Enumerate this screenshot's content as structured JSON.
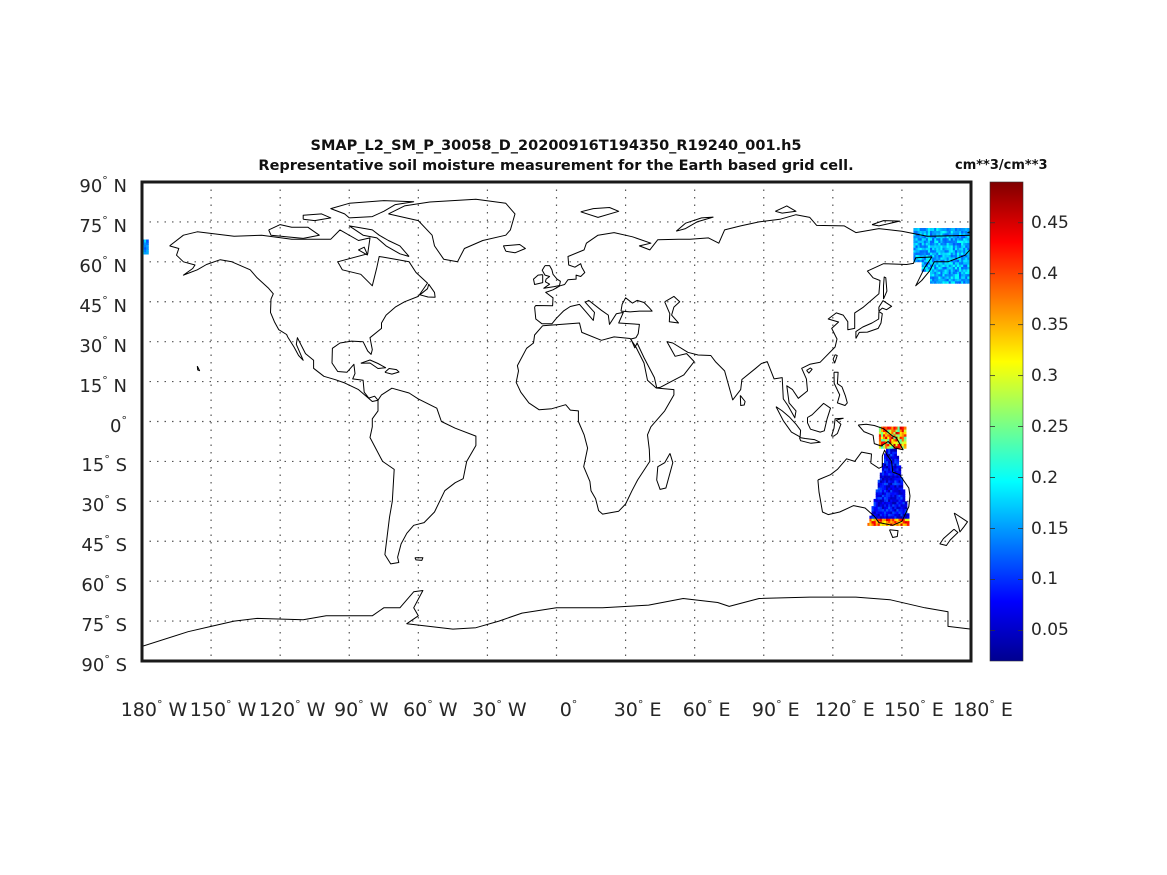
{
  "title": {
    "line1": "SMAP_L2_SM_P_30058_D_20200916T194350_R19240_001.h5",
    "line2": "Representative soil moisture measurement for the Earth based grid cell."
  },
  "colorbar": {
    "unit": "cm**3/cm**3",
    "range": [
      0.02,
      0.49
    ],
    "colormap": "jet",
    "ticks": [
      "0.45",
      "0.4",
      "0.35",
      "0.3",
      "0.25",
      "0.2",
      "0.15",
      "0.1",
      "0.05"
    ],
    "tick_values": [
      0.45,
      0.4,
      0.35,
      0.3,
      0.25,
      0.2,
      0.15,
      0.1,
      0.05
    ]
  },
  "map": {
    "projection": "equirectangular",
    "lon_range": [
      -180,
      180
    ],
    "lat_range": [
      -90,
      90
    ],
    "grid": "dotted",
    "lat_labels": [
      {
        "deg": "90",
        "hem": "N",
        "lat": 90
      },
      {
        "deg": "75",
        "hem": "N",
        "lat": 75
      },
      {
        "deg": "60",
        "hem": "N",
        "lat": 60
      },
      {
        "deg": "45",
        "hem": "N",
        "lat": 45
      },
      {
        "deg": "30",
        "hem": "N",
        "lat": 30
      },
      {
        "deg": "15",
        "hem": "N",
        "lat": 15
      },
      {
        "deg": "0",
        "hem": "",
        "lat": 0
      },
      {
        "deg": "15",
        "hem": "S",
        "lat": -15
      },
      {
        "deg": "30",
        "hem": "S",
        "lat": -30
      },
      {
        "deg": "45",
        "hem": "S",
        "lat": -45
      },
      {
        "deg": "60",
        "hem": "S",
        "lat": -60
      },
      {
        "deg": "75",
        "hem": "S",
        "lat": -75
      },
      {
        "deg": "90",
        "hem": "S",
        "lat": -90
      }
    ],
    "lon_labels": [
      {
        "deg": "180",
        "hem": "W",
        "lon": -180
      },
      {
        "deg": "150",
        "hem": "W",
        "lon": -150
      },
      {
        "deg": "120",
        "hem": "W",
        "lon": -120
      },
      {
        "deg": "90",
        "hem": "W",
        "lon": -90
      },
      {
        "deg": "60",
        "hem": "W",
        "lon": -60
      },
      {
        "deg": "30",
        "hem": "W",
        "lon": -30
      },
      {
        "deg": "0",
        "hem": "",
        "lon": 0
      },
      {
        "deg": "30",
        "hem": "E",
        "lon": 30
      },
      {
        "deg": "60",
        "hem": "E",
        "lon": 60
      },
      {
        "deg": "90",
        "hem": "E",
        "lon": 90
      },
      {
        "deg": "120",
        "hem": "E",
        "lon": 120
      },
      {
        "deg": "150",
        "hem": "E",
        "lon": 150
      },
      {
        "deg": "180",
        "hem": "E",
        "lon": 180
      }
    ],
    "data_swaths": [
      {
        "region": "Eastern Australia",
        "lon_range": [
          135,
          153
        ],
        "lat_range": [
          -39,
          -10
        ],
        "typical_value": 0.08
      },
      {
        "region": "New Guinea",
        "lon_range": [
          140,
          151
        ],
        "lat_range": [
          -10,
          -2
        ],
        "typical_value": 0.35
      },
      {
        "region": "Far East Russia / Kamchatka",
        "lon_range": [
          155,
          180
        ],
        "lat_range": [
          52,
          72
        ],
        "typical_value": 0.16
      },
      {
        "region": "Alaska (western edge)",
        "lon_range": [
          -180,
          -178
        ],
        "lat_range": [
          63,
          68
        ],
        "typical_value": 0.15
      }
    ]
  },
  "colors": {
    "frame": "#1a1a1a",
    "coastline": "#000000",
    "grid": "#555555"
  }
}
